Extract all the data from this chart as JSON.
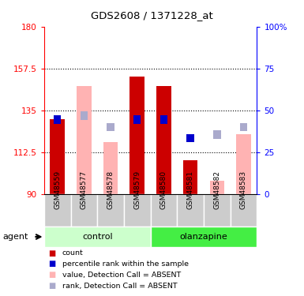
{
  "title": "GDS2608 / 1371228_at",
  "samples": [
    "GSM48559",
    "GSM48577",
    "GSM48578",
    "GSM48579",
    "GSM48580",
    "GSM48581",
    "GSM48582",
    "GSM48583"
  ],
  "groups": [
    "control",
    "control",
    "control",
    "control",
    "olanzapine",
    "olanzapine",
    "olanzapine",
    "olanzapine"
  ],
  "red_bar_heights": [
    130,
    null,
    null,
    153,
    148,
    108,
    null,
    null
  ],
  "pink_bar_heights": [
    null,
    148,
    118,
    null,
    null,
    null,
    97,
    122
  ],
  "blue_square_y": [
    130,
    null,
    null,
    130,
    130,
    120,
    null,
    null
  ],
  "light_blue_square_y": [
    null,
    132,
    126,
    null,
    null,
    null,
    122,
    126
  ],
  "ylim": [
    90,
    180
  ],
  "yticks_left": [
    90,
    112.5,
    135,
    157.5,
    180
  ],
  "yticks_right_labels": [
    "0",
    "25",
    "50",
    "75",
    "100%"
  ],
  "red_color": "#cc0000",
  "pink_color": "#ffb3b3",
  "blue_color": "#0000cc",
  "light_blue_color": "#aaaacc",
  "control_color": "#ccffcc",
  "olanzapine_color": "#44ee44",
  "gray_color": "#cccccc",
  "legend_labels": [
    "count",
    "percentile rank within the sample",
    "value, Detection Call = ABSENT",
    "rank, Detection Call = ABSENT"
  ]
}
